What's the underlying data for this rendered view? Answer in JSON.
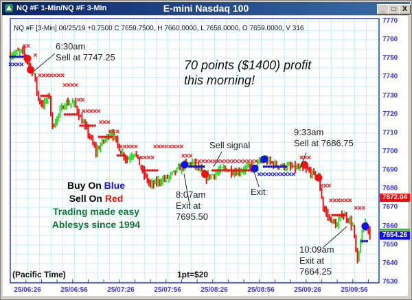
{
  "window": {
    "tab_title": "NQ #F 1-Min/NQ #F 3-Min",
    "title": "E-mini Nasdaq 100",
    "minimize": "_",
    "maximize": "□",
    "close": "X"
  },
  "chart": {
    "info_line": "NQ #F [3-Min] 06/25/19  +0.7500 C 7659.7500, H 7660.0000, L 7658.0000, O 7659.0000, V 316",
    "timezone_label": "(Pacific Time)",
    "point_value_label": "1pt=$20",
    "headline": [
      "70 points ($1400) profit",
      "this morning!"
    ],
    "legend": {
      "buy_prefix": "Buy On ",
      "buy_word": "Blue",
      "sell_prefix": "Sell On ",
      "sell_word": "Red",
      "line3": "Trading made easy",
      "line4": "Ablesys since 1994"
    },
    "annotations": {
      "a1": [
        "6:30am",
        "Sell at 7747.25"
      ],
      "a2": [
        "8:07am",
        "Exit at",
        "7695.50"
      ],
      "a3": [
        "Sell signal"
      ],
      "a4": [
        "Exit"
      ],
      "a5": [
        "9:33am",
        "Sell at 7686.75"
      ],
      "a6": [
        "10:09am",
        "Exit at",
        "7664.25"
      ]
    },
    "price_tags": {
      "last_red": "7672.04",
      "last_blue": "7654.26"
    },
    "colors": {
      "up": "#22dd22",
      "down": "#ee1111",
      "buy": "#1111dd",
      "sell": "#ee1111",
      "grid": "#c8eef0",
      "axis": "#3a3ad0"
    }
  },
  "chart_data": {
    "type": "candlestick-bars",
    "y_ticks": [
      "7770",
      "7760",
      "7750",
      "7740",
      "7730",
      "7720",
      "7710",
      "7700",
      "7690",
      "7680",
      "7670",
      "7660",
      "7650",
      "7640",
      "7630"
    ],
    "ylim": [
      7630,
      7770
    ],
    "x_ticks": [
      "25/06:26",
      "25/06:56",
      "25/07:26",
      "25/07:56",
      "25/08:26",
      "25/08:56",
      "25/09:26",
      "25/09:56"
    ],
    "price_path": [
      [
        "06:15",
        7752
      ],
      [
        "06:22",
        7754
      ],
      [
        "06:25",
        7750
      ],
      [
        "06:27",
        7746
      ],
      [
        "06:30",
        7742
      ],
      [
        "06:33",
        7728
      ],
      [
        "06:36",
        7725
      ],
      [
        "06:40",
        7730
      ],
      [
        "06:42",
        7713
      ],
      [
        "06:46",
        7720
      ],
      [
        "06:50",
        7726
      ],
      [
        "06:56",
        7726
      ],
      [
        "07:00",
        7718
      ],
      [
        "07:05",
        7710
      ],
      [
        "07:10",
        7700
      ],
      [
        "07:15",
        7706
      ],
      [
        "07:20",
        7711
      ],
      [
        "07:26",
        7700
      ],
      [
        "07:30",
        7696
      ],
      [
        "07:35",
        7700
      ],
      [
        "07:40",
        7689
      ],
      [
        "07:45",
        7682
      ],
      [
        "07:50",
        7684
      ],
      [
        "07:56",
        7686
      ],
      [
        "08:02",
        7690
      ],
      [
        "08:07",
        7693
      ],
      [
        "08:12",
        7694
      ],
      [
        "08:17",
        7690
      ],
      [
        "08:20",
        7686
      ],
      [
        "08:26",
        7688
      ],
      [
        "08:32",
        7691
      ],
      [
        "08:40",
        7689
      ],
      [
        "08:46",
        7691
      ],
      [
        "08:52",
        7692
      ],
      [
        "08:58",
        7696
      ],
      [
        "09:05",
        7693
      ],
      [
        "09:12",
        7692
      ],
      [
        "09:20",
        7691
      ],
      [
        "09:26",
        7690
      ],
      [
        "09:33",
        7686
      ],
      [
        "09:36",
        7670
      ],
      [
        "09:40",
        7664
      ],
      [
        "09:45",
        7660
      ],
      [
        "09:48",
        7667
      ],
      [
        "09:52",
        7664
      ],
      [
        "09:55",
        7660
      ],
      [
        "09:58",
        7640
      ],
      [
        "10:00",
        7652
      ],
      [
        "10:03",
        7662
      ],
      [
        "10:06",
        7656
      ]
    ],
    "sell_stop_x": [
      [
        "06:24",
        "06:28",
        7757
      ],
      [
        "06:31",
        "06:33",
        7752
      ],
      [
        "06:34",
        "06:49",
        7741
      ],
      [
        "06:50",
        "06:58",
        7736
      ],
      [
        "06:59",
        "07:02",
        7728
      ],
      [
        "07:02",
        "07:12",
        7722
      ],
      [
        "07:13",
        "07:18",
        7716
      ],
      [
        "07:19",
        "07:25",
        7711
      ],
      [
        "07:26",
        "07:38",
        7703
      ],
      [
        "07:39",
        "07:47",
        7697
      ],
      [
        "07:48",
        "08:05",
        7703
      ],
      [
        "08:06",
        "08:13",
        7698
      ],
      [
        "08:14",
        "08:55",
        7695
      ],
      [
        "09:22",
        "09:28",
        7697
      ],
      [
        "09:35",
        "09:40",
        7682
      ],
      [
        "09:41",
        "09:55",
        7674
      ],
      [
        "09:57",
        "10:04",
        7670
      ]
    ],
    "buy_stop_x": [
      [
        "06:15",
        "06:23",
        7747
      ],
      [
        "08:55",
        "09:19",
        7688
      ]
    ],
    "sell_dots": [
      [
        "06:35",
        "06:40",
        7730
      ],
      [
        "06:50",
        "06:58",
        7720
      ],
      [
        "07:00",
        "07:10",
        7714
      ],
      [
        "07:12",
        "07:20",
        7708
      ],
      [
        "07:24",
        "07:30",
        7698
      ],
      [
        "07:40",
        "07:50",
        7690
      ],
      [
        "08:25",
        "08:50",
        7690
      ],
      [
        "09:42",
        "09:50",
        7666
      ]
    ],
    "buy_dots": [
      [
        "06:15",
        "06:25",
        7751
      ],
      [
        "08:10",
        "08:20",
        7692
      ],
      [
        "08:58",
        "09:12",
        7692
      ],
      [
        "10:01",
        "10:05",
        7652
      ]
    ],
    "buy_signals": [
      [
        "08:07",
        7693
      ],
      [
        "08:52",
        7691
      ],
      [
        "08:58",
        7696
      ],
      [
        "10:03",
        7660
      ]
    ],
    "sell_signals": [
      [
        "06:26",
        7750
      ],
      [
        "06:28",
        7744
      ],
      [
        "08:20",
        7688
      ],
      [
        "09:24",
        7693
      ],
      [
        "09:33",
        7686
      ]
    ]
  }
}
